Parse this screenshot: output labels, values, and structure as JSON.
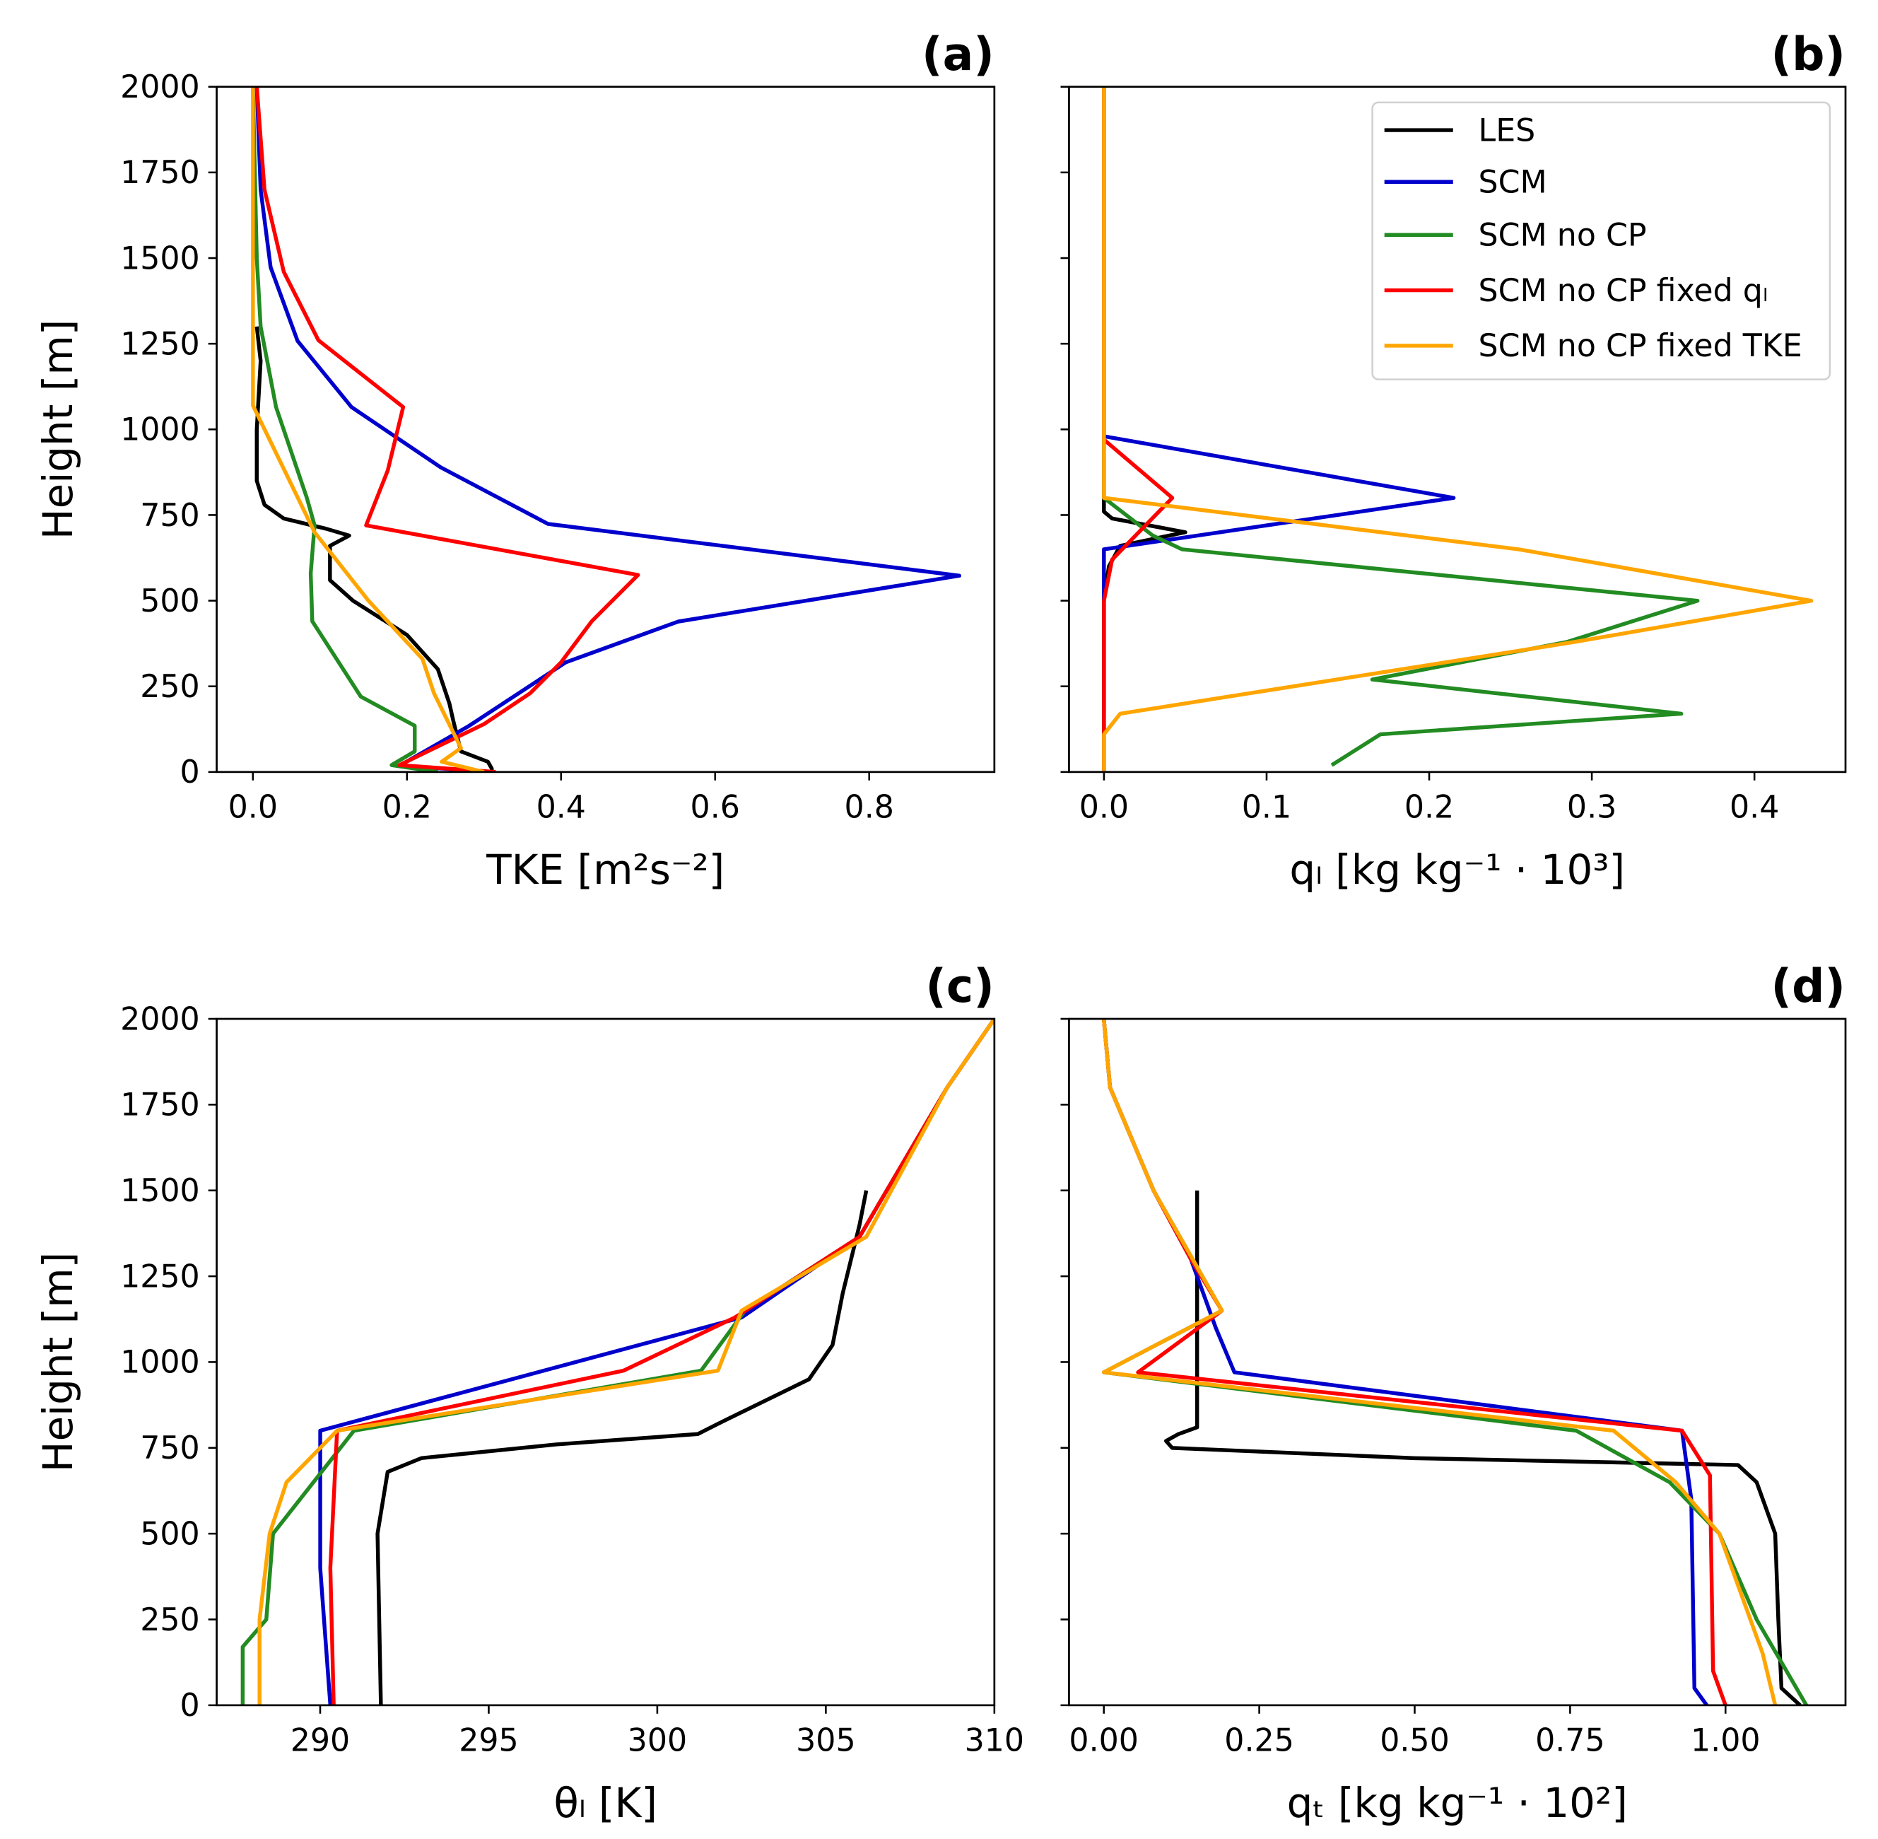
{
  "legend": {
    "placement": "upper-right of panel (b)",
    "entries": [
      {
        "name": "LES",
        "color": "#000000"
      },
      {
        "name": "SCM",
        "color": "#0000cc"
      },
      {
        "name": "SCM no CP",
        "color": "#228b22"
      },
      {
        "name": "SCM no CP fixed qₗ",
        "color": "#ff0000"
      },
      {
        "name": "SCM no CP fixed TKE",
        "color": "#ffa500"
      }
    ]
  },
  "chart_data": [
    {
      "type": "line",
      "panel_label": "(a)",
      "xlabel": "TKE [m²s⁻²]",
      "ylabel": "Height [m]",
      "xlim": [
        -0.047,
        0.9625
      ],
      "ylim": [
        0,
        2000
      ],
      "xticks": [
        "0.0",
        "0.2",
        "0.4",
        "0.6",
        "0.8"
      ],
      "xtick_values": [
        0,
        0.2,
        0.4,
        0.6,
        0.8
      ],
      "yticks": [
        "0",
        "250",
        "500",
        "750",
        "1000",
        "1250",
        "1500",
        "1750",
        "2000"
      ],
      "series": [
        {
          "name": "LES",
          "points": [
            [
              0.005,
              1300
            ],
            [
              0.01,
              1200
            ],
            [
              0.005,
              1000
            ],
            [
              0.005,
              850
            ],
            [
              0.015,
              780
            ],
            [
              0.04,
              740
            ],
            [
              0.095,
              710
            ],
            [
              0.125,
              690
            ],
            [
              0.1,
              660
            ],
            [
              0.1,
              560
            ],
            [
              0.13,
              500
            ],
            [
              0.2,
              400
            ],
            [
              0.24,
              300
            ],
            [
              0.255,
              200
            ],
            [
              0.26,
              150
            ],
            [
              0.27,
              60
            ],
            [
              0.305,
              30
            ],
            [
              0.31,
              10
            ],
            [
              0.31,
              0
            ]
          ]
        },
        {
          "name": "SCM",
          "points": [
            [
              0.005,
              2000
            ],
            [
              0.01,
              1700
            ],
            [
              0.023,
              1473
            ],
            [
              0.058,
              1258
            ],
            [
              0.128,
              1065
            ],
            [
              0.244,
              889
            ],
            [
              0.383,
              724
            ],
            [
              0.917,
              573
            ],
            [
              0.552,
              439
            ],
            [
              0.406,
              320
            ],
            [
              0.28,
              134
            ],
            [
              0.19,
              18
            ],
            [
              0.315,
              0
            ]
          ]
        },
        {
          "name": "SCM no CP",
          "points": [
            [
              0,
              2000
            ],
            [
              0.005,
              1500
            ],
            [
              0.01,
              1300
            ],
            [
              0.03,
              1065
            ],
            [
              0.07,
              800
            ],
            [
              0.08,
              720
            ],
            [
              0.075,
              580
            ],
            [
              0.077,
              440
            ],
            [
              0.14,
              220
            ],
            [
              0.21,
              135
            ],
            [
              0.21,
              60
            ],
            [
              0.18,
              20
            ],
            [
              0.24,
              0
            ]
          ]
        },
        {
          "name": "SCM no CP fixed qₗ",
          "points": [
            [
              0.005,
              2000
            ],
            [
              0.015,
              1700
            ],
            [
              0.04,
              1460
            ],
            [
              0.085,
              1260
            ],
            [
              0.195,
              1065
            ],
            [
              0.175,
              880
            ],
            [
              0.147,
              720
            ],
            [
              0.5,
              575
            ],
            [
              0.44,
              440
            ],
            [
              0.4,
              320
            ],
            [
              0.36,
              230
            ],
            [
              0.3,
              140
            ],
            [
              0.19,
              20
            ],
            [
              0.315,
              0
            ]
          ]
        },
        {
          "name": "SCM no CP fixed TKE",
          "points": [
            [
              0,
              2000
            ],
            [
              0,
              1070
            ],
            [
              0.08,
              700
            ],
            [
              0.15,
              500
            ],
            [
              0.22,
              330
            ],
            [
              0.235,
              230
            ],
            [
              0.27,
              70
            ],
            [
              0.245,
              30
            ],
            [
              0.3,
              0
            ]
          ]
        }
      ]
    },
    {
      "type": "line",
      "panel_label": "(b)",
      "xlabel": "qₗ [kg kg⁻¹ · 10³]",
      "ylabel": "",
      "xlim": [
        -0.0215,
        0.456
      ],
      "ylim": [
        0,
        2000
      ],
      "xticks": [
        "0.0",
        "0.1",
        "0.2",
        "0.3",
        "0.4"
      ],
      "xtick_values": [
        0,
        0.1,
        0.2,
        0.3,
        0.4
      ],
      "yticks": [],
      "series": [
        {
          "name": "LES",
          "points": [
            [
              0,
              2000
            ],
            [
              0,
              760
            ],
            [
              0.005,
              740
            ],
            [
              0.05,
              700
            ],
            [
              0.01,
              660
            ],
            [
              0.003,
              600
            ],
            [
              0,
              500
            ],
            [
              0,
              0
            ]
          ]
        },
        {
          "name": "SCM",
          "points": [
            [
              0,
              2000
            ],
            [
              0,
              980
            ],
            [
              0.215,
              800
            ],
            [
              0,
              650
            ],
            [
              0,
              0
            ]
          ]
        },
        {
          "name": "SCM no CP",
          "points": [
            [
              0,
              2000
            ],
            [
              0,
              800
            ],
            [
              0.03,
              690
            ],
            [
              0.048,
              650
            ],
            [
              0.365,
              500
            ],
            [
              0.285,
              380
            ],
            [
              0.165,
              270
            ],
            [
              0.355,
              170
            ],
            [
              0.17,
              110
            ],
            [
              0.14,
              20
            ]
          ]
        },
        {
          "name": "SCM no CP fixed qₗ",
          "points": [
            [
              0,
              2000
            ],
            [
              0,
              970
            ],
            [
              0.042,
              800
            ],
            [
              0.005,
              620
            ],
            [
              0,
              500
            ],
            [
              0,
              0
            ]
          ]
        },
        {
          "name": "SCM no CP fixed TKE",
          "points": [
            [
              0,
              2000
            ],
            [
              0,
              800
            ],
            [
              0.255,
              650
            ],
            [
              0.435,
              500
            ],
            [
              0.29,
              380
            ],
            [
              0.01,
              170
            ],
            [
              0,
              110
            ],
            [
              0,
              0
            ]
          ]
        }
      ]
    },
    {
      "type": "line",
      "panel_label": "(c)",
      "xlabel": "θₗ [K]",
      "ylabel": "Height [m]",
      "xlim": [
        286.93,
        310
      ],
      "ylim": [
        0,
        2000
      ],
      "xticks": [
        "290",
        "295",
        "300",
        "305",
        "310"
      ],
      "xtick_values": [
        290,
        295,
        300,
        305,
        310
      ],
      "yticks": [
        "0",
        "250",
        "500",
        "750",
        "1000",
        "1250",
        "1500",
        "1750",
        "2000"
      ],
      "series": [
        {
          "name": "LES",
          "points": [
            [
              291.8,
              0
            ],
            [
              291.7,
              500
            ],
            [
              292,
              680
            ],
            [
              293,
              720
            ],
            [
              297,
              760
            ],
            [
              301.2,
              790
            ],
            [
              302,
              830
            ],
            [
              304.5,
              950
            ],
            [
              305.2,
              1050
            ],
            [
              305.5,
              1200
            ],
            [
              306,
              1400
            ],
            [
              306.2,
              1500
            ]
          ]
        },
        {
          "name": "SCM",
          "points": [
            [
              290.3,
              0
            ],
            [
              290,
              400
            ],
            [
              290,
              800
            ],
            [
              302.5,
              1130
            ],
            [
              306,
              1365
            ],
            [
              308.6,
              1800
            ],
            [
              310,
              2000
            ]
          ]
        },
        {
          "name": "SCM no CP",
          "points": [
            [
              287.7,
              0
            ],
            [
              287.7,
              170
            ],
            [
              288.4,
              250
            ],
            [
              288.6,
              500
            ],
            [
              291,
              800
            ],
            [
              301.3,
              975
            ],
            [
              302.6,
              1150
            ],
            [
              306,
              1365
            ],
            [
              308.6,
              1800
            ],
            [
              310,
              2000
            ]
          ]
        },
        {
          "name": "SCM no CP fixed qₗ",
          "points": [
            [
              290.4,
              0
            ],
            [
              290.3,
              400
            ],
            [
              290.5,
              800
            ],
            [
              299,
              975
            ],
            [
              302.3,
              1130
            ],
            [
              306,
              1365
            ],
            [
              308.6,
              1800
            ],
            [
              310,
              2000
            ]
          ]
        },
        {
          "name": "SCM no CP fixed TKE",
          "points": [
            [
              288.2,
              0
            ],
            [
              288.2,
              250
            ],
            [
              288.5,
              500
            ],
            [
              289,
              650
            ],
            [
              290.5,
              800
            ],
            [
              301.8,
              975
            ],
            [
              302.5,
              1150
            ],
            [
              306.2,
              1365
            ],
            [
              308.6,
              1800
            ],
            [
              310,
              2000
            ]
          ]
        }
      ]
    },
    {
      "type": "line",
      "panel_label": "(d)",
      "xlabel": "qₜ [kg kg⁻¹ · 10²]",
      "ylabel": "",
      "xlim": [
        -0.056,
        1.193
      ],
      "ylim": [
        0,
        2000
      ],
      "xticks": [
        "0.00",
        "0.25",
        "0.50",
        "0.75",
        "1.00"
      ],
      "xtick_values": [
        0,
        0.25,
        0.5,
        0.75,
        1.0
      ],
      "yticks": [],
      "series": [
        {
          "name": "LES",
          "points": [
            [
              0.15,
              1500
            ],
            [
              0.15,
              1000
            ],
            [
              0.15,
              810
            ],
            [
              0.12,
              790
            ],
            [
              0.1,
              770
            ],
            [
              0.11,
              750
            ],
            [
              0.5,
              720
            ],
            [
              1.02,
              700
            ],
            [
              1.05,
              650
            ],
            [
              1.08,
              500
            ],
            [
              1.085,
              250
            ],
            [
              1.09,
              50
            ],
            [
              1.12,
              0
            ]
          ]
        },
        {
          "name": "SCM",
          "points": [
            [
              0,
              2000
            ],
            [
              0.01,
              1800
            ],
            [
              0.08,
              1500
            ],
            [
              0.14,
              1300
            ],
            [
              0.18,
              1100
            ],
            [
              0.21,
              970
            ],
            [
              0.93,
              800
            ],
            [
              0.945,
              600
            ],
            [
              0.95,
              50
            ],
            [
              0.97,
              0
            ]
          ]
        },
        {
          "name": "SCM no CP",
          "points": [
            [
              0,
              2000
            ],
            [
              0.01,
              1800
            ],
            [
              0.08,
              1500
            ],
            [
              0.19,
              1150
            ],
            [
              0,
              970
            ],
            [
              0.76,
              800
            ],
            [
              0.91,
              650
            ],
            [
              0.99,
              500
            ],
            [
              1.05,
              250
            ],
            [
              1.13,
              0
            ]
          ]
        },
        {
          "name": "SCM no CP fixed qₗ",
          "points": [
            [
              0,
              2000
            ],
            [
              0.01,
              1800
            ],
            [
              0.08,
              1500
            ],
            [
              0.14,
              1300
            ],
            [
              0.19,
              1150
            ],
            [
              0.055,
              970
            ],
            [
              0.93,
              800
            ],
            [
              0.975,
              670
            ],
            [
              0.98,
              100
            ],
            [
              1.0,
              0
            ]
          ]
        },
        {
          "name": "SCM no CP fixed TKE",
          "points": [
            [
              0,
              2000
            ],
            [
              0.01,
              1800
            ],
            [
              0.08,
              1500
            ],
            [
              0.19,
              1150
            ],
            [
              0,
              970
            ],
            [
              0.82,
              800
            ],
            [
              0.92,
              650
            ],
            [
              0.99,
              500
            ],
            [
              1.06,
              150
            ],
            [
              1.08,
              0
            ]
          ]
        }
      ]
    }
  ]
}
